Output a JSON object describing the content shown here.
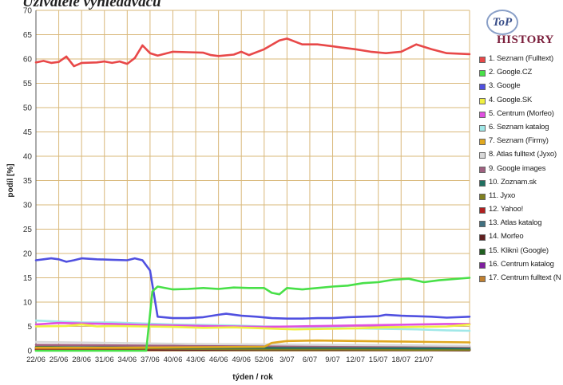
{
  "header_text": "Uživatelé vyhledávačů",
  "logo": {
    "mark": "ToP",
    "word": "HISTORY"
  },
  "chart_data": {
    "type": "line",
    "ylabel": "podíl [%]",
    "xlabel": "týden / rok",
    "ylim": [
      0,
      70
    ],
    "yticks": [
      0,
      5,
      10,
      15,
      20,
      25,
      30,
      35,
      40,
      45,
      50,
      55,
      60,
      65,
      70
    ],
    "ytick_labels": [
      "0",
      "5",
      "10",
      "15",
      "20",
      "25",
      "30",
      "35",
      "40",
      "45",
      "50",
      "55",
      "60",
      "65",
      "70"
    ],
    "xlim": [
      0,
      57
    ],
    "x_ticks": [
      {
        "x": 0,
        "label": "22/06"
      },
      {
        "x": 3,
        "label": "25/06"
      },
      {
        "x": 6,
        "label": "28/06"
      },
      {
        "x": 9,
        "label": "31/06"
      },
      {
        "x": 12,
        "label": "34/06"
      },
      {
        "x": 15,
        "label": "37/06"
      },
      {
        "x": 18,
        "label": "40/06"
      },
      {
        "x": 21,
        "label": "43/06"
      },
      {
        "x": 24,
        "label": "46/06"
      },
      {
        "x": 27,
        "label": "49/06"
      },
      {
        "x": 30,
        "label": "52/06"
      },
      {
        "x": 33,
        "label": "3/07"
      },
      {
        "x": 36,
        "label": "6/07"
      },
      {
        "x": 39,
        "label": "9/07"
      },
      {
        "x": 42,
        "label": "12/07"
      },
      {
        "x": 45,
        "label": "15/07"
      },
      {
        "x": 48,
        "label": "18/07"
      },
      {
        "x": 51,
        "label": "21/07"
      }
    ],
    "grid": true,
    "legend_position": "right",
    "series": [
      {
        "name": "1. Seznam (Fulltext)",
        "color": "#e84848",
        "points": [
          [
            0,
            59.3
          ],
          [
            1,
            59.6
          ],
          [
            2,
            59.2
          ],
          [
            3,
            59.4
          ],
          [
            4,
            60.5
          ],
          [
            5,
            58.5
          ],
          [
            6,
            59.2
          ],
          [
            8,
            59.3
          ],
          [
            9,
            59.5
          ],
          [
            10,
            59.2
          ],
          [
            11,
            59.5
          ],
          [
            12,
            59.0
          ],
          [
            13,
            60.2
          ],
          [
            14,
            62.8
          ],
          [
            15,
            61.2
          ],
          [
            16,
            60.7
          ],
          [
            18,
            61.5
          ],
          [
            20,
            61.4
          ],
          [
            22,
            61.3
          ],
          [
            23,
            60.8
          ],
          [
            24,
            60.6
          ],
          [
            26,
            60.9
          ],
          [
            27,
            61.5
          ],
          [
            28,
            60.8
          ],
          [
            30,
            62.0
          ],
          [
            32,
            63.8
          ],
          [
            33,
            64.2
          ],
          [
            35,
            63.0
          ],
          [
            37,
            63.0
          ],
          [
            39,
            62.6
          ],
          [
            40,
            62.4
          ],
          [
            42,
            62.0
          ],
          [
            44,
            61.5
          ],
          [
            46,
            61.2
          ],
          [
            48,
            61.5
          ],
          [
            50,
            63.0
          ],
          [
            52,
            62.0
          ],
          [
            54,
            61.2
          ],
          [
            57,
            61.0
          ]
        ]
      },
      {
        "name": "2. Google.CZ",
        "color": "#48e048",
        "points": [
          [
            0,
            0
          ],
          [
            13,
            0
          ],
          [
            14.5,
            0
          ],
          [
            15.3,
            12.2
          ],
          [
            16,
            13.2
          ],
          [
            18,
            12.6
          ],
          [
            20,
            12.7
          ],
          [
            22,
            12.9
          ],
          [
            24,
            12.7
          ],
          [
            26,
            13.0
          ],
          [
            28,
            12.9
          ],
          [
            30,
            12.9
          ],
          [
            31,
            11.9
          ],
          [
            32,
            11.6
          ],
          [
            33,
            12.9
          ],
          [
            35,
            12.6
          ],
          [
            37,
            12.9
          ],
          [
            39,
            13.2
          ],
          [
            41,
            13.4
          ],
          [
            43,
            13.9
          ],
          [
            45,
            14.1
          ],
          [
            47,
            14.6
          ],
          [
            49,
            14.8
          ],
          [
            51,
            14.1
          ],
          [
            53,
            14.5
          ],
          [
            57,
            15.0
          ]
        ]
      },
      {
        "name": "3. Google",
        "color": "#5050e0",
        "points": [
          [
            0,
            18.6
          ],
          [
            1,
            18.8
          ],
          [
            2,
            19.0
          ],
          [
            3,
            18.8
          ],
          [
            4,
            18.3
          ],
          [
            5,
            18.6
          ],
          [
            6,
            19.0
          ],
          [
            8,
            18.8
          ],
          [
            10,
            18.7
          ],
          [
            12,
            18.6
          ],
          [
            13,
            19.0
          ],
          [
            14,
            18.6
          ],
          [
            15,
            16.5
          ],
          [
            16,
            7.0
          ],
          [
            18,
            6.7
          ],
          [
            20,
            6.7
          ],
          [
            22,
            6.9
          ],
          [
            24,
            7.4
          ],
          [
            25,
            7.6
          ],
          [
            27,
            7.2
          ],
          [
            29,
            7.0
          ],
          [
            31,
            6.7
          ],
          [
            33,
            6.6
          ],
          [
            35,
            6.6
          ],
          [
            37,
            6.7
          ],
          [
            39,
            6.7
          ],
          [
            41,
            6.9
          ],
          [
            43,
            7.0
          ],
          [
            45,
            7.1
          ],
          [
            46,
            7.4
          ],
          [
            48,
            7.2
          ],
          [
            50,
            7.1
          ],
          [
            52,
            7.0
          ],
          [
            54,
            6.8
          ],
          [
            57,
            7.0
          ]
        ]
      },
      {
        "name": "4. Google.SK",
        "color": "#f0f040",
        "points": [
          [
            0,
            5.0
          ],
          [
            4,
            5.1
          ],
          [
            6,
            5.4
          ],
          [
            8,
            5.0
          ],
          [
            10,
            5.1
          ],
          [
            14,
            5.0
          ],
          [
            18,
            4.9
          ],
          [
            22,
            4.7
          ],
          [
            26,
            4.8
          ],
          [
            30,
            4.6
          ],
          [
            34,
            4.4
          ],
          [
            38,
            4.5
          ],
          [
            42,
            4.6
          ],
          [
            46,
            4.8
          ],
          [
            50,
            4.9
          ],
          [
            54,
            5.0
          ],
          [
            57,
            5.4
          ]
        ]
      },
      {
        "name": "5. Centrum (Morfeo)",
        "color": "#e050e0",
        "points": [
          [
            0,
            5.4
          ],
          [
            3,
            5.7
          ],
          [
            6,
            5.6
          ],
          [
            10,
            5.5
          ],
          [
            14,
            5.3
          ],
          [
            18,
            5.2
          ],
          [
            22,
            5.1
          ],
          [
            26,
            5.0
          ],
          [
            30,
            4.9
          ],
          [
            34,
            5.0
          ],
          [
            38,
            5.1
          ],
          [
            42,
            5.2
          ],
          [
            46,
            5.3
          ],
          [
            50,
            5.4
          ],
          [
            54,
            5.5
          ],
          [
            57,
            5.5
          ]
        ]
      },
      {
        "name": "6. Seznam katalog",
        "color": "#a0e8e8",
        "points": [
          [
            0,
            6.2
          ],
          [
            3,
            6.0
          ],
          [
            6,
            5.8
          ],
          [
            10,
            5.8
          ],
          [
            14,
            5.6
          ],
          [
            18,
            5.4
          ],
          [
            22,
            5.3
          ],
          [
            26,
            5.2
          ],
          [
            30,
            5.0
          ],
          [
            34,
            4.9
          ],
          [
            38,
            4.8
          ],
          [
            42,
            4.6
          ],
          [
            46,
            4.5
          ],
          [
            50,
            4.4
          ],
          [
            54,
            4.2
          ],
          [
            57,
            4.1
          ]
        ]
      },
      {
        "name": "7. Seznam (Firmy)",
        "color": "#e0a820",
        "points": [
          [
            0,
            0.6
          ],
          [
            10,
            0.6
          ],
          [
            20,
            0.7
          ],
          [
            30,
            0.8
          ],
          [
            31,
            1.6
          ],
          [
            33,
            2.0
          ],
          [
            37,
            2.1
          ],
          [
            42,
            2.0
          ],
          [
            47,
            1.9
          ],
          [
            52,
            1.8
          ],
          [
            57,
            1.7
          ]
        ]
      },
      {
        "name": "8. Atlas fulltext (Jyxo)",
        "color": "#d8d8d8",
        "points": [
          [
            0,
            1.8
          ],
          [
            10,
            1.6
          ],
          [
            20,
            1.4
          ],
          [
            30,
            1.3
          ],
          [
            40,
            1.2
          ],
          [
            50,
            1.1
          ],
          [
            57,
            1.0
          ]
        ]
      },
      {
        "name": "9. Google images",
        "color": "#a06080",
        "points": [
          [
            0,
            1.2
          ],
          [
            10,
            1.1
          ],
          [
            20,
            1.0
          ],
          [
            30,
            1.0
          ],
          [
            40,
            0.9
          ],
          [
            50,
            0.9
          ],
          [
            57,
            0.8
          ]
        ]
      },
      {
        "name": "10. Zoznam.sk",
        "color": "#207060",
        "points": [
          [
            0,
            0.7
          ],
          [
            10,
            0.7
          ],
          [
            20,
            0.6
          ],
          [
            30,
            0.6
          ],
          [
            40,
            0.6
          ],
          [
            50,
            0.5
          ],
          [
            57,
            0.5
          ]
        ]
      },
      {
        "name": "11. Jyxo",
        "color": "#808020",
        "points": [
          [
            0,
            0.8
          ],
          [
            10,
            0.6
          ],
          [
            20,
            0.4
          ],
          [
            30,
            0.3
          ],
          [
            40,
            0.3
          ],
          [
            50,
            0.2
          ],
          [
            57,
            0.2
          ]
        ]
      },
      {
        "name": "12. Yahoo!",
        "color": "#b02020",
        "points": [
          [
            0,
            0.4
          ],
          [
            20,
            0.4
          ],
          [
            40,
            0.3
          ],
          [
            57,
            0.3
          ]
        ]
      },
      {
        "name": "13. Atlas katalog",
        "color": "#407080",
        "points": [
          [
            0,
            0.5
          ],
          [
            20,
            0.4
          ],
          [
            40,
            0.3
          ],
          [
            57,
            0.3
          ]
        ]
      },
      {
        "name": "14. Morfeo",
        "color": "#602020",
        "points": [
          [
            0,
            0.2
          ],
          [
            20,
            0.2
          ],
          [
            40,
            0.2
          ],
          [
            57,
            0.1
          ]
        ]
      },
      {
        "name": "15. Kliknì (Google)",
        "color": "#206020",
        "points": [
          [
            0,
            0.3
          ],
          [
            20,
            0.2
          ],
          [
            40,
            0.2
          ],
          [
            57,
            0.2
          ]
        ]
      },
      {
        "name": "16. Centrum katalog",
        "color": "#8020a0",
        "points": [
          [
            0,
            0.3
          ],
          [
            20,
            0.3
          ],
          [
            40,
            0.2
          ],
          [
            57,
            0.2
          ]
        ]
      },
      {
        "name": "17. Centrum fulltext (N",
        "color": "#c08030",
        "points": [
          [
            0,
            0.1
          ],
          [
            20,
            0.1
          ],
          [
            40,
            0.1
          ],
          [
            57,
            0.1
          ]
        ]
      }
    ]
  }
}
